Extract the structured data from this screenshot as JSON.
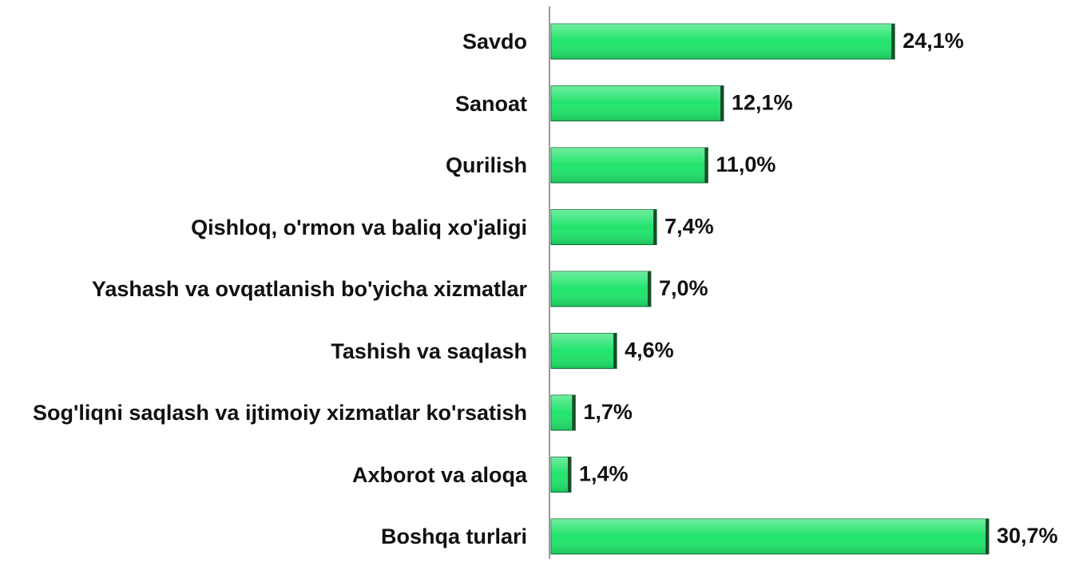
{
  "chart_data": {
    "type": "bar",
    "orientation": "horizontal",
    "categories": [
      "Savdo",
      "Sanoat",
      "Qurilish",
      "Qishloq, o'rmon va baliq xo'jaligi",
      "Yashash va ovqatlanish bo'yicha xizmatlar",
      "Tashish va saqlash",
      "Sog'liqni saqlash va ijtimoiy xizmatlar ko'rsatish",
      "Axborot va aloqa",
      "Boshqa turlari"
    ],
    "values": [
      24.1,
      12.1,
      11.0,
      7.4,
      7.0,
      4.6,
      1.7,
      1.4,
      30.7
    ],
    "value_labels": [
      "24,1%",
      "12,1%",
      "11,0%",
      "7,4%",
      "7,0%",
      "4,6%",
      "1,7%",
      "1,4%",
      "30,7%"
    ],
    "color": "#22e46c"
  }
}
